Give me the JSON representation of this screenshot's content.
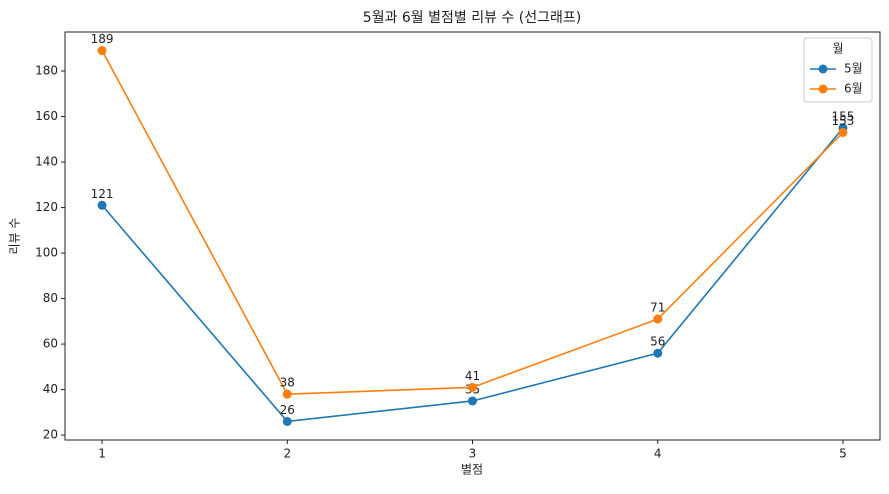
{
  "chart_data": {
    "type": "line",
    "title": "5월과 6월 별점별 리뷰 수 (선그래프)",
    "x_label": "별점",
    "y_label": "리뷰 수",
    "x": [
      1,
      2,
      3,
      4,
      5
    ],
    "series": [
      {
        "name": "5월",
        "color": "#1f77b4",
        "values": [
          121,
          26,
          35,
          56,
          155
        ]
      },
      {
        "name": "6월",
        "color": "#ff7f0e",
        "values": [
          189,
          38,
          41,
          71,
          153
        ]
      }
    ],
    "xlim": [
      0.8,
      5.2
    ],
    "xticks": [
      1,
      2,
      3,
      4,
      5
    ],
    "ylim": [
      17.85,
      197.15
    ],
    "yticks": [
      20,
      40,
      60,
      80,
      100,
      120,
      140,
      160,
      180
    ],
    "legend_title": "월",
    "legend_position": "upper right",
    "grid": false
  }
}
